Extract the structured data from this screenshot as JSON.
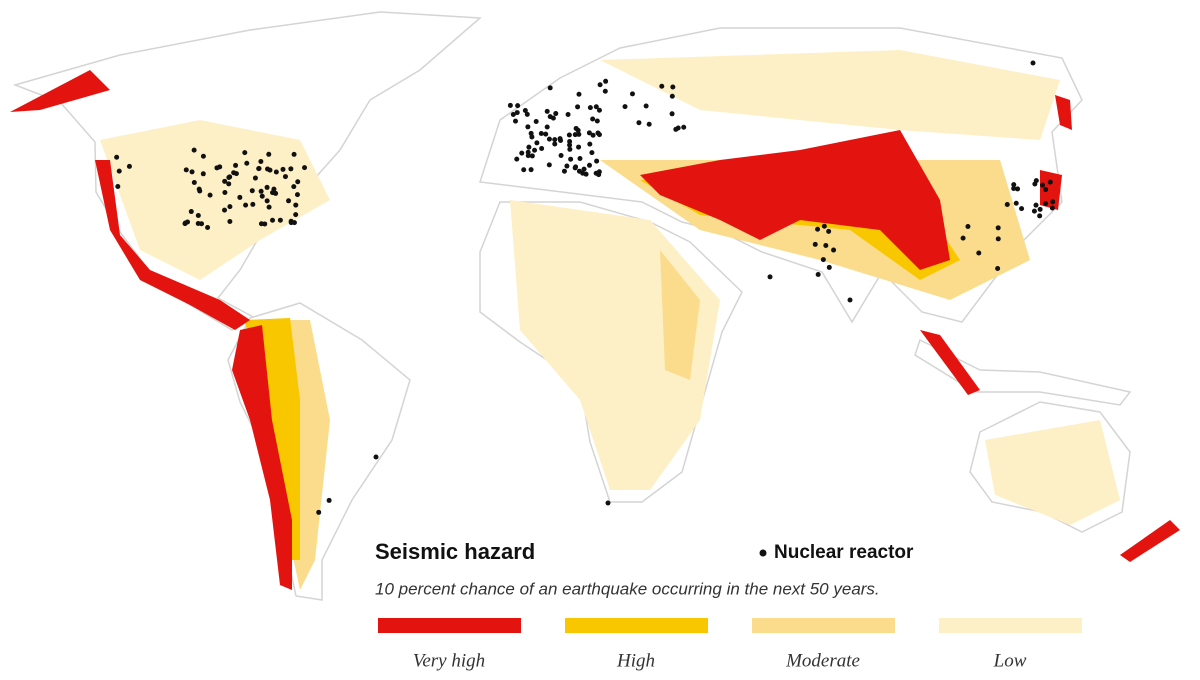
{
  "legend": {
    "title": "Seismic hazard",
    "marker_label": "Nuclear reactor",
    "subtitle": "10 percent chance of an earthquake occurring in the next 50 years.",
    "levels": [
      {
        "label": "Very high",
        "color": "#e3140f"
      },
      {
        "label": "High",
        "color": "#f8c700"
      },
      {
        "label": "Moderate",
        "color": "#fbdc8c"
      },
      {
        "label": "Low",
        "color": "#fdefc6"
      }
    ]
  }
}
